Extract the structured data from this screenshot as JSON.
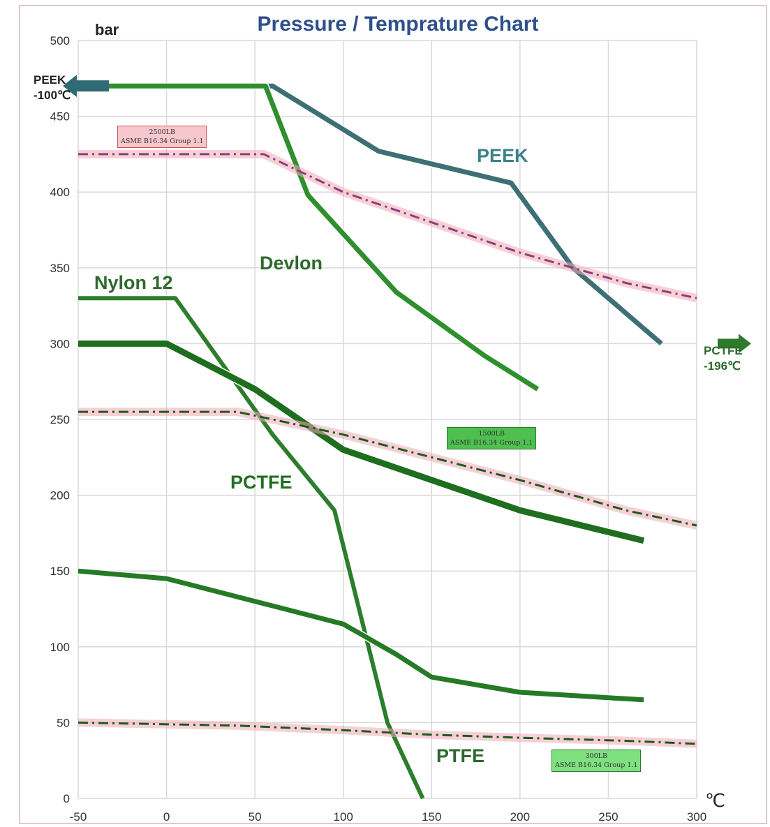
{
  "chart_data": {
    "type": "line",
    "title": "Pressure / Temprature Chart",
    "ylabel": "bar",
    "xlabel": "℃",
    "xlim": [
      -50,
      300
    ],
    "ylim": [
      0,
      500
    ],
    "x_ticks": [
      -50,
      0,
      50,
      100,
      150,
      200,
      250,
      300
    ],
    "y_ticks": [
      0,
      50,
      100,
      150,
      200,
      250,
      300,
      350,
      400,
      450,
      500
    ],
    "grid": true,
    "series": [
      {
        "name": "PEEK",
        "color": "#3d6f75",
        "width": 7,
        "dash": "",
        "points": [
          [
            -50,
            470
          ],
          [
            10,
            470
          ],
          [
            60,
            470
          ],
          [
            120,
            427
          ],
          [
            195,
            406
          ],
          [
            230,
            350
          ],
          [
            280,
            300
          ]
        ]
      },
      {
        "name": "Devlon",
        "color": "#2f8f2f",
        "width": 7,
        "dash": "",
        "points": [
          [
            -50,
            470
          ],
          [
            10,
            470
          ],
          [
            56,
            470
          ],
          [
            80,
            398
          ],
          [
            130,
            334
          ],
          [
            180,
            292
          ],
          [
            210,
            270
          ]
        ]
      },
      {
        "name": "Nylon 12",
        "color": "#2c7d2c",
        "width": 6,
        "dash": "",
        "points": [
          [
            -50,
            330
          ],
          [
            5,
            330
          ],
          [
            60,
            240
          ],
          [
            95,
            190
          ],
          [
            110,
            120
          ],
          [
            125,
            50
          ],
          [
            145,
            0
          ]
        ]
      },
      {
        "name": "PCTFE",
        "color": "#1f6e1f",
        "width": 9,
        "dash": "",
        "points": [
          [
            -50,
            300
          ],
          [
            0,
            300
          ],
          [
            50,
            270
          ],
          [
            100,
            230
          ],
          [
            150,
            210
          ],
          [
            200,
            190
          ],
          [
            270,
            170
          ]
        ]
      },
      {
        "name": "PTFE",
        "color": "#267a26",
        "width": 7,
        "dash": "",
        "points": [
          [
            -50,
            150
          ],
          [
            0,
            145
          ],
          [
            50,
            130
          ],
          [
            100,
            115
          ],
          [
            130,
            95
          ],
          [
            150,
            80
          ],
          [
            200,
            70
          ],
          [
            270,
            65
          ]
        ]
      },
      {
        "name": "ASME B16.34 Group 1.1 (2500LB)",
        "color": "#8a3f7d",
        "width": 3,
        "dash": "14 6 3 6",
        "points": [
          [
            -50,
            425
          ],
          [
            55,
            425
          ],
          [
            100,
            400
          ],
          [
            150,
            380
          ],
          [
            200,
            360
          ],
          [
            260,
            340
          ],
          [
            300,
            330
          ]
        ]
      },
      {
        "name": "ASME B16.34 Group 1.1 (1500LB)",
        "color": "#1d5a1d",
        "width": 3,
        "dash": "14 6 3 6",
        "points": [
          [
            -50,
            255
          ],
          [
            40,
            255
          ],
          [
            100,
            240
          ],
          [
            150,
            225
          ],
          [
            200,
            210
          ],
          [
            260,
            190
          ],
          [
            300,
            180
          ]
        ]
      },
      {
        "name": "ASME B16.34 Group 1.1 (300LB)",
        "color": "#1d5a1d",
        "width": 3,
        "dash": "14 6 3 6",
        "points": [
          [
            -50,
            50
          ],
          [
            40,
            48
          ],
          [
            100,
            45
          ],
          [
            150,
            42
          ],
          [
            200,
            40
          ],
          [
            260,
            38
          ],
          [
            300,
            36
          ]
        ]
      }
    ]
  },
  "labels": {
    "peek": "PEEK",
    "devlon": "Devlon",
    "nylon": "Nylon 12",
    "pctfe": "PCTFE",
    "ptfe": "PTFE",
    "asme_2500_class": "2500LB",
    "asme_2500_name": "ASME B16.34 Group 1.1",
    "asme_1500_class": "1500LB",
    "asme_1500_name": "ASME B16.34 Group 1.1",
    "asme_300_class": "300LB",
    "asme_300_name": "ASME B16.34 Group 1.1",
    "left_note_line1": "PEEK",
    "left_note_line2": "-100℃",
    "right_note_line1": "PCTFE",
    "right_note_line2": "-196℃"
  },
  "colors": {
    "title": "#2f4f8a",
    "peek_label": "#3d8088",
    "green_label": "#2d6a2d",
    "grid": "#d9d9d9",
    "arrow": "#2f6b73"
  }
}
